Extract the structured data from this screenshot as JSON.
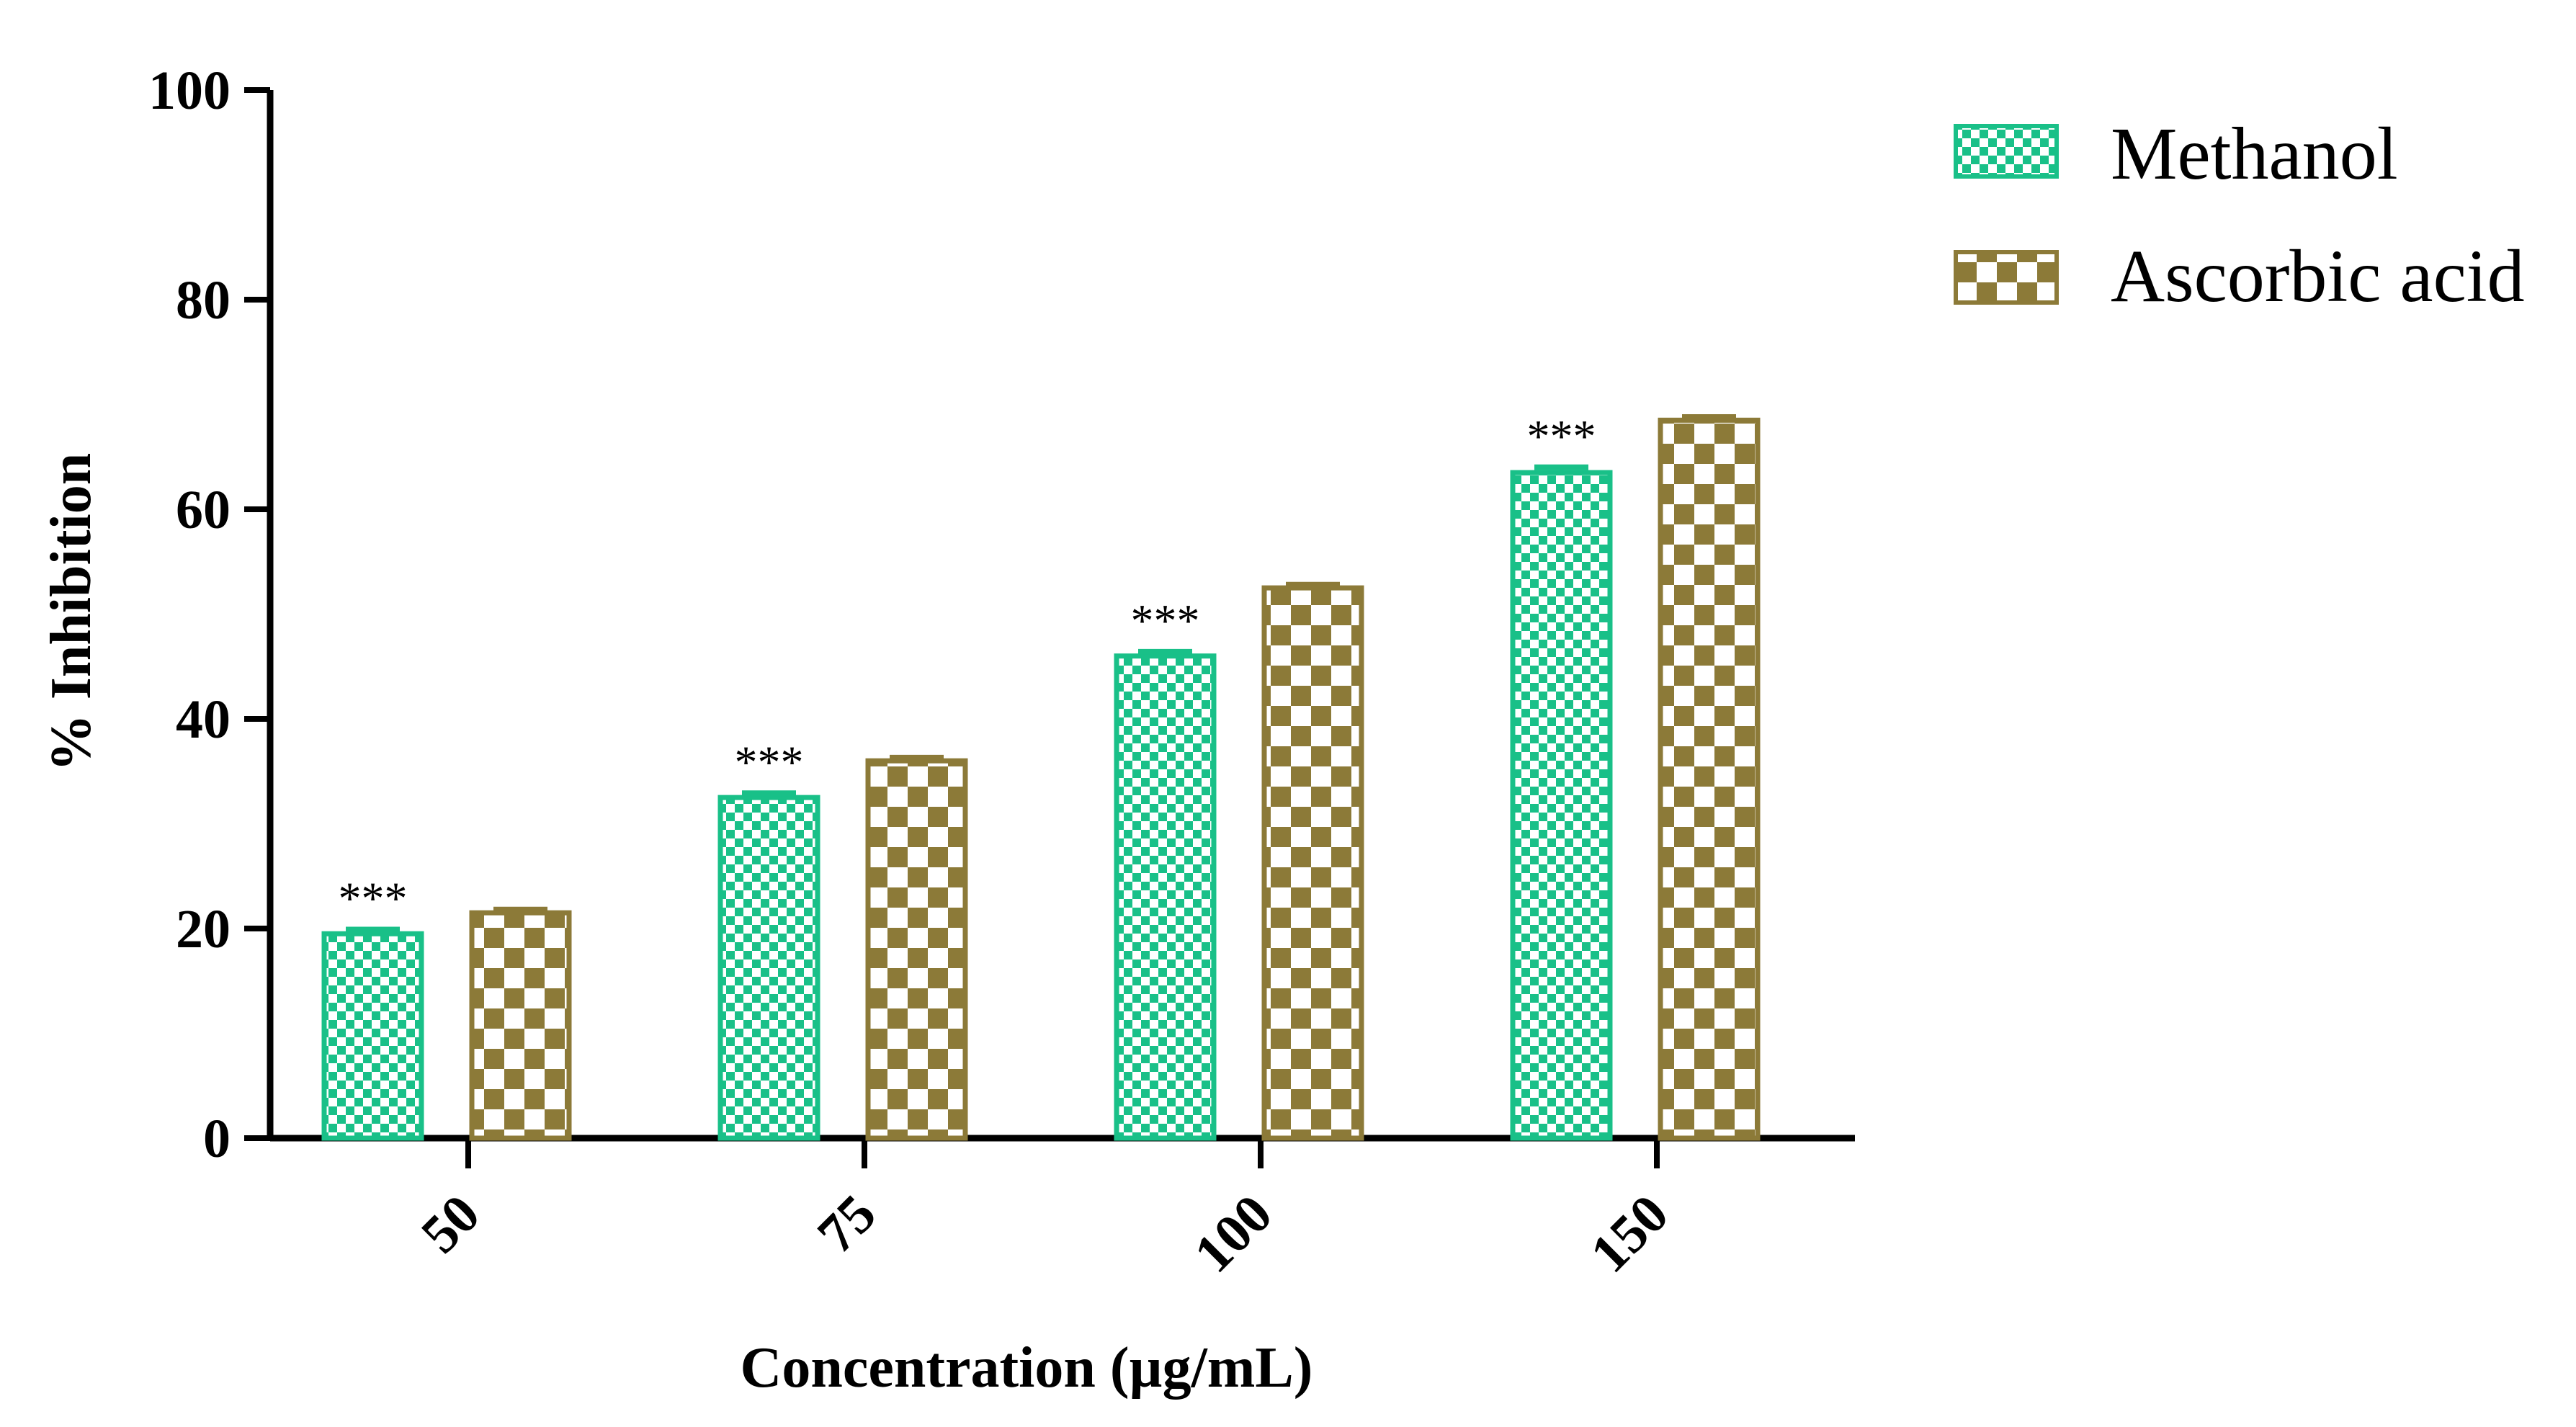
{
  "colors": {
    "methanol": "#19c088",
    "ascorbic": "#8c7a38",
    "axis": "#000000",
    "background": "#ffffff"
  },
  "chart_data": {
    "type": "bar",
    "title": "",
    "xlabel": "Concentration (µg/mL)",
    "ylabel": "% Inhibition",
    "ylim": [
      0,
      100
    ],
    "yticks": [
      0,
      20,
      40,
      60,
      80,
      100
    ],
    "categories": [
      "50",
      "75",
      "100",
      "150"
    ],
    "series": [
      {
        "name": "Methanol",
        "values": [
          19.5,
          32.5,
          46,
          63.5
        ],
        "error": [
          0.4,
          0.4,
          0.4,
          0.5
        ],
        "annotations": [
          "***",
          "***",
          "***",
          "***"
        ],
        "pattern": "fine-checker"
      },
      {
        "name": "Ascorbic acid",
        "values": [
          21.5,
          36,
          52.5,
          68.5
        ],
        "error": [
          0.3,
          0.3,
          0.3,
          0.3
        ],
        "annotations": [
          "",
          "",
          "",
          ""
        ],
        "pattern": "coarse-checker"
      }
    ],
    "legend_position": "top-right"
  }
}
